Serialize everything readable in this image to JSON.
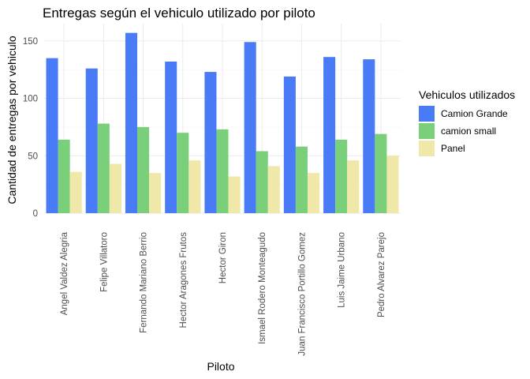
{
  "chart_data": {
    "type": "bar",
    "title": "Entregas según el vehiculo utilizado por piloto",
    "xlabel": "Piloto",
    "ylabel": "Cantidad de entregas por vehiculo",
    "ylim": [
      0,
      165
    ],
    "yticks": [
      0,
      50,
      100,
      150
    ],
    "grid": true,
    "legend_position": "right",
    "legend_title": "Vehiculos utilizados",
    "categories": [
      "Angel Valdez Alegria",
      "Felipe Villatoro",
      "Fernando Mariano Berrio",
      "Hector Aragones Frutos",
      "Hector Giron",
      "Ismael Rodero Monteagudo",
      "Juan Francisco Portillo Gomez",
      "Luis Jaime Urbano",
      "Pedro Alvarez Parejo"
    ],
    "series": [
      {
        "name": "Camion Grande",
        "color": "#4a7bf7",
        "values": [
          135,
          126,
          157,
          132,
          123,
          149,
          119,
          136,
          134
        ]
      },
      {
        "name": "camion small",
        "color": "#7ad07a",
        "values": [
          64,
          78,
          75,
          70,
          73,
          54,
          58,
          64,
          69
        ]
      },
      {
        "name": "Panel",
        "color": "#f0e8a8",
        "values": [
          36,
          43,
          35,
          46,
          32,
          41,
          35,
          46,
          50
        ]
      }
    ]
  }
}
